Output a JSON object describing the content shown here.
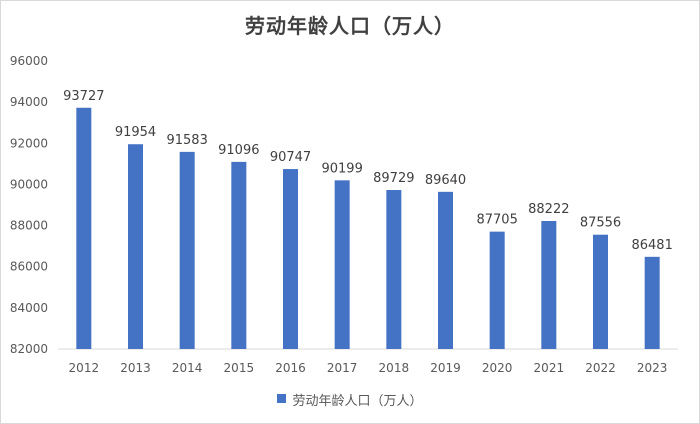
{
  "chart_data": {
    "type": "bar",
    "title": "劳动年龄人口（万人）",
    "categories": [
      "2012",
      "2013",
      "2014",
      "2015",
      "2016",
      "2017",
      "2018",
      "2019",
      "2020",
      "2021",
      "2022",
      "2023"
    ],
    "series": [
      {
        "name": "劳动年龄人口（万人）",
        "values": [
          93727,
          91954,
          91583,
          91096,
          90747,
          90199,
          89729,
          89640,
          87705,
          88222,
          87556,
          86481
        ],
        "color": "#4472c4"
      }
    ],
    "ylim": [
      82000,
      96000
    ],
    "yticks": [
      "82000",
      "84000",
      "86000",
      "88000",
      "90000",
      "92000",
      "94000",
      "96000"
    ],
    "xlabel": "",
    "ylabel": "",
    "grid": false,
    "legend": "bottom",
    "data_labels": true
  }
}
